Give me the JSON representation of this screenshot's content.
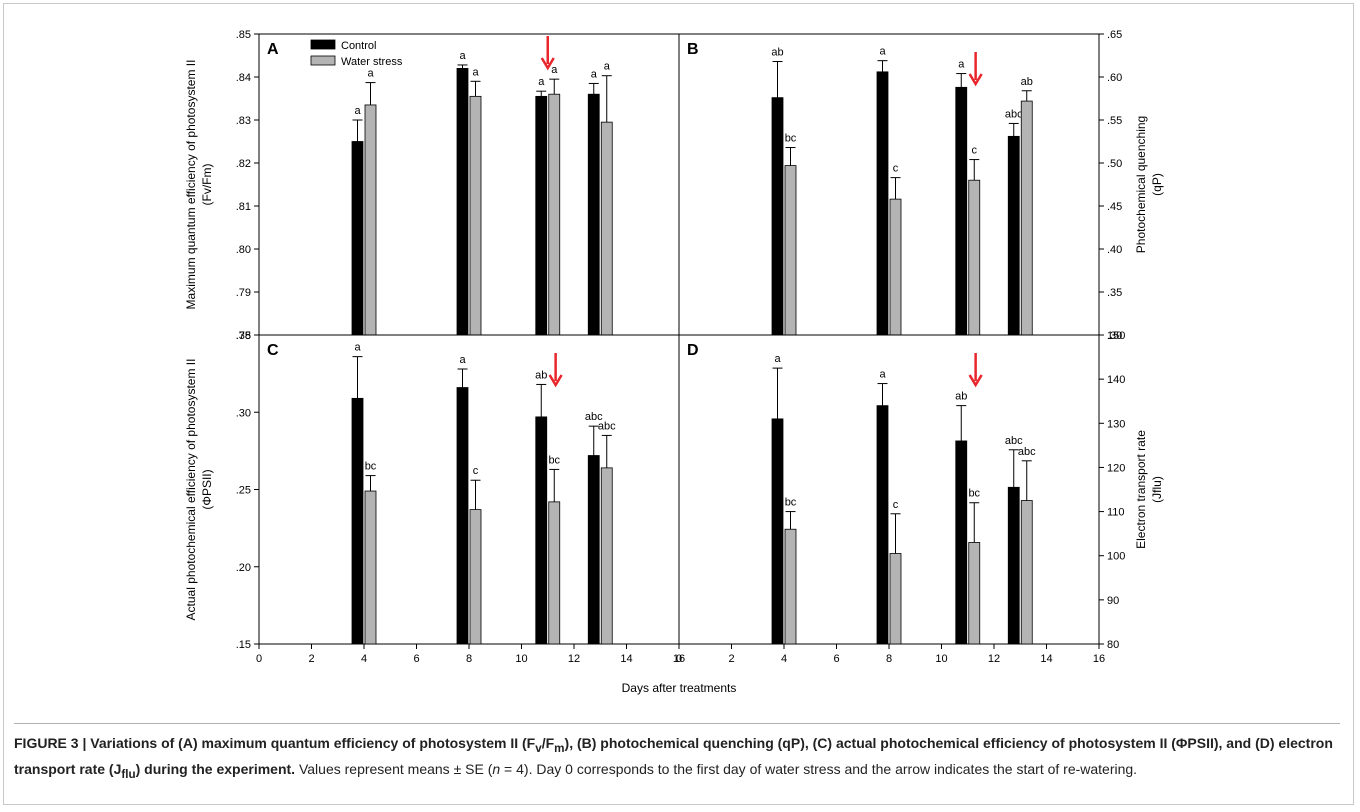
{
  "figure": {
    "xlabel": "Days after treatments",
    "caption": {
      "title_html": "FIGURE 3 | Variations of (A) maximum quantum efficiency of photosystem II (F<sub>v</sub>/F<sub>m</sub>), (B) photochemical quenching (qP), (C) actual photochemical efficiency of photosystem II (ΦPSII), and (D) electron transport rate (J<sub>flu</sub>) during the experiment.",
      "body_html": " Values represent means ± SE (<i>n</i> = 4). Day 0 corresponds to the first day of water stress and the arrow indicates the start of re-watering."
    },
    "legend": [
      "Control",
      "Water stress"
    ],
    "colors": {
      "control": "#000000",
      "water_stress": "#b4b4b4",
      "arrow": "#e8262b",
      "axis": "#000000"
    }
  },
  "chart_data": [
    {
      "panel": "A",
      "type": "bar",
      "ylabel_html": "Maximum quantum efficiency of photosystem II<tspan x='0' dy='16'>(F</tspan><tspan baseline-shift='sub' font-size='9'>v</tspan><tspan>/F</tspan><tspan baseline-shift='sub' font-size='9'>m</tspan><tspan>)</tspan>",
      "ylabel_lines": [
        "Maximum quantum efficiency of photosystem II",
        "(Fv/Fm)"
      ],
      "yaxis_side": "left",
      "ylim": [
        0.78,
        0.85
      ],
      "yticks": [
        0.78,
        0.79,
        0.8,
        0.81,
        0.82,
        0.83,
        0.84,
        0.85
      ],
      "ytick_labels": [
        ".78",
        ".79",
        ".80",
        ".81",
        ".82",
        ".83",
        ".84",
        ".85"
      ],
      "xlim": [
        0,
        16
      ],
      "x": [
        4,
        8,
        11,
        13
      ],
      "series": [
        {
          "name": "Control",
          "values": [
            0.825,
            0.842,
            0.8355,
            0.836
          ],
          "errors": [
            0.005,
            0.0008,
            0.0012,
            0.0025
          ],
          "letters": [
            "a",
            "a",
            "a",
            "a"
          ]
        },
        {
          "name": "Water stress",
          "values": [
            0.8335,
            0.8355,
            0.836,
            0.8295
          ],
          "errors": [
            0.0052,
            0.0035,
            0.0035,
            0.0108
          ],
          "letters": [
            "a",
            "a",
            "a",
            "a"
          ]
        }
      ],
      "arrow_day": 11,
      "legend": "top-left"
    },
    {
      "panel": "B",
      "type": "bar",
      "ylabel_lines": [
        "Photochemical quenching",
        "(qP)"
      ],
      "yaxis_side": "right",
      "ylim": [
        0.3,
        0.65
      ],
      "yticks": [
        0.3,
        0.35,
        0.4,
        0.45,
        0.5,
        0.55,
        0.6,
        0.65
      ],
      "ytick_labels": [
        ".30",
        ".35",
        ".40",
        ".45",
        ".50",
        ".55",
        ".60",
        ".65"
      ],
      "xlim": [
        0,
        16
      ],
      "x": [
        4,
        8,
        11,
        13
      ],
      "series": [
        {
          "name": "Control",
          "values": [
            0.576,
            0.606,
            0.588,
            0.531
          ],
          "errors": [
            0.042,
            0.013,
            0.016,
            0.015
          ],
          "letters": [
            "ab",
            "a",
            "a",
            "abc"
          ]
        },
        {
          "name": "Water stress",
          "values": [
            0.497,
            0.458,
            0.48,
            0.572
          ],
          "errors": [
            0.021,
            0.025,
            0.024,
            0.012
          ],
          "letters": [
            "bc",
            "c",
            "c",
            "ab"
          ]
        }
      ],
      "arrow_day": 11.3
    },
    {
      "panel": "C",
      "type": "bar",
      "ylabel_lines": [
        "Actual photochemical efficiency of photosystem II",
        "(ΦPSII)"
      ],
      "yaxis_side": "left",
      "ylim": [
        0.15,
        0.35
      ],
      "yticks": [
        0.15,
        0.2,
        0.25,
        0.3,
        0.35
      ],
      "ytick_labels": [
        ".15",
        ".20",
        ".25",
        ".30",
        ".35"
      ],
      "xlim": [
        0,
        16
      ],
      "xticks": [
        0,
        2,
        4,
        6,
        8,
        10,
        12,
        14,
        16
      ],
      "x": [
        4,
        8,
        11,
        13
      ],
      "series": [
        {
          "name": "Control",
          "values": [
            0.309,
            0.316,
            0.297,
            0.272
          ],
          "errors": [
            0.027,
            0.012,
            0.021,
            0.019
          ],
          "letters": [
            "a",
            "a",
            "ab",
            "abc"
          ]
        },
        {
          "name": "Water stress",
          "values": [
            0.249,
            0.237,
            0.242,
            0.264
          ],
          "errors": [
            0.01,
            0.019,
            0.021,
            0.021
          ],
          "letters": [
            "bc",
            "c",
            "bc",
            "abc"
          ]
        }
      ],
      "arrow_day": 11.3
    },
    {
      "panel": "D",
      "type": "bar",
      "ylabel_lines": [
        "Electron transport rate",
        "(Jflu)"
      ],
      "yaxis_side": "right",
      "ylim": [
        80,
        150
      ],
      "yticks": [
        80,
        90,
        100,
        110,
        120,
        130,
        140,
        150
      ],
      "ytick_labels": [
        "80",
        "90",
        "100",
        "110",
        "120",
        "130",
        "140",
        "150"
      ],
      "xlim": [
        0,
        16
      ],
      "xticks": [
        0,
        2,
        4,
        6,
        8,
        10,
        12,
        14,
        16
      ],
      "x": [
        4,
        8,
        11,
        13
      ],
      "series": [
        {
          "name": "Control",
          "values": [
            131,
            134,
            126,
            115.5
          ],
          "errors": [
            11.5,
            5,
            8,
            8.5
          ],
          "letters": [
            "a",
            "a",
            "ab",
            "abc"
          ]
        },
        {
          "name": "Water stress",
          "values": [
            106,
            100.5,
            103,
            112.5
          ],
          "errors": [
            4,
            9,
            9,
            9
          ],
          "letters": [
            "bc",
            "c",
            "bc",
            "abc"
          ]
        }
      ],
      "arrow_day": 11.3
    }
  ]
}
